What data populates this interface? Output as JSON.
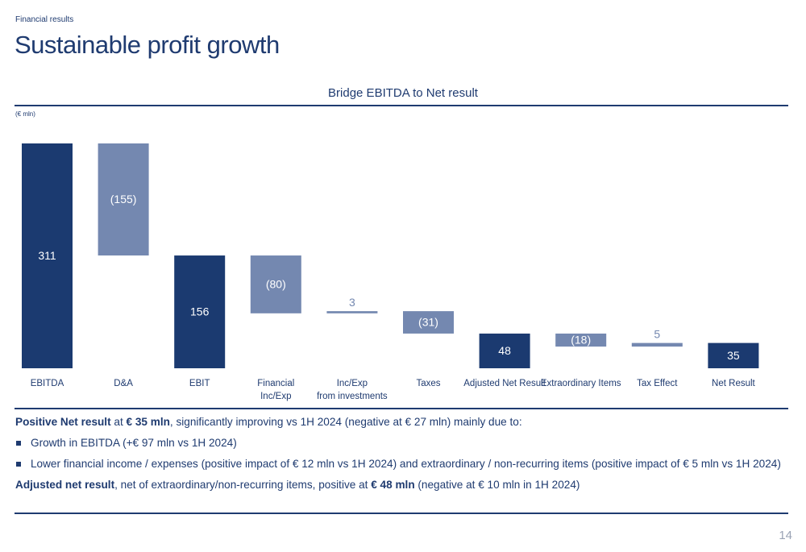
{
  "section": "Financial results",
  "title": "Sustainable profit growth",
  "chart_data": {
    "type": "waterfall",
    "title": "Bridge EBITDA to Net result",
    "unit_label": "(€ mln)",
    "categories": [
      "EBITDA",
      "D&A",
      "EBIT",
      "Financial\nInc/Exp",
      "Inc/Exp\nfrom investments",
      "Taxes",
      "Adjusted Net Result",
      "Extraordinary Items",
      "Tax Effect",
      "Net Result"
    ],
    "values": [
      311,
      -155,
      156,
      -80,
      3,
      -31,
      48,
      -18,
      5,
      35
    ],
    "value_labels": [
      "311",
      "(155)",
      "156",
      "(80)",
      "3",
      "(31)",
      "48",
      "(18)",
      "5",
      "35"
    ],
    "measure": [
      "absolute",
      "relative",
      "absolute",
      "relative",
      "relative",
      "relative",
      "absolute",
      "relative",
      "relative",
      "absolute"
    ],
    "colors": {
      "absolute": "#1b3a70",
      "relative": "#7488b0"
    }
  },
  "commentary": [
    {
      "kind": "paragraph",
      "segments": [
        {
          "text": "Positive Net result",
          "bold": true
        },
        {
          "text": " at "
        },
        {
          "text": "€ 35 mln",
          "bold": true
        },
        {
          "text": ", significantly improving vs 1H 2024 (negative at € 27 mln) mainly due to:"
        }
      ]
    },
    {
      "kind": "bullet",
      "segments": [
        {
          "text": "Growth in EBITDA (+€ 97 mln vs 1H 2024)"
        }
      ]
    },
    {
      "kind": "bullet",
      "segments": [
        {
          "text": "Lower financial income / expenses (positive impact of € 12 mln vs 1H 2024) and extraordinary / non-recurring items (positive impact of € 5 mln vs 1H 2024)"
        }
      ]
    },
    {
      "kind": "paragraph",
      "segments": [
        {
          "text": "Adjusted net result",
          "bold": true
        },
        {
          "text": ", net of extraordinary/non-recurring items, positive at "
        },
        {
          "text": "€ 48 mln",
          "bold": true
        },
        {
          "text": " (negative at € 10 mln in 1H 2024)"
        }
      ]
    }
  ],
  "page_number": "14"
}
